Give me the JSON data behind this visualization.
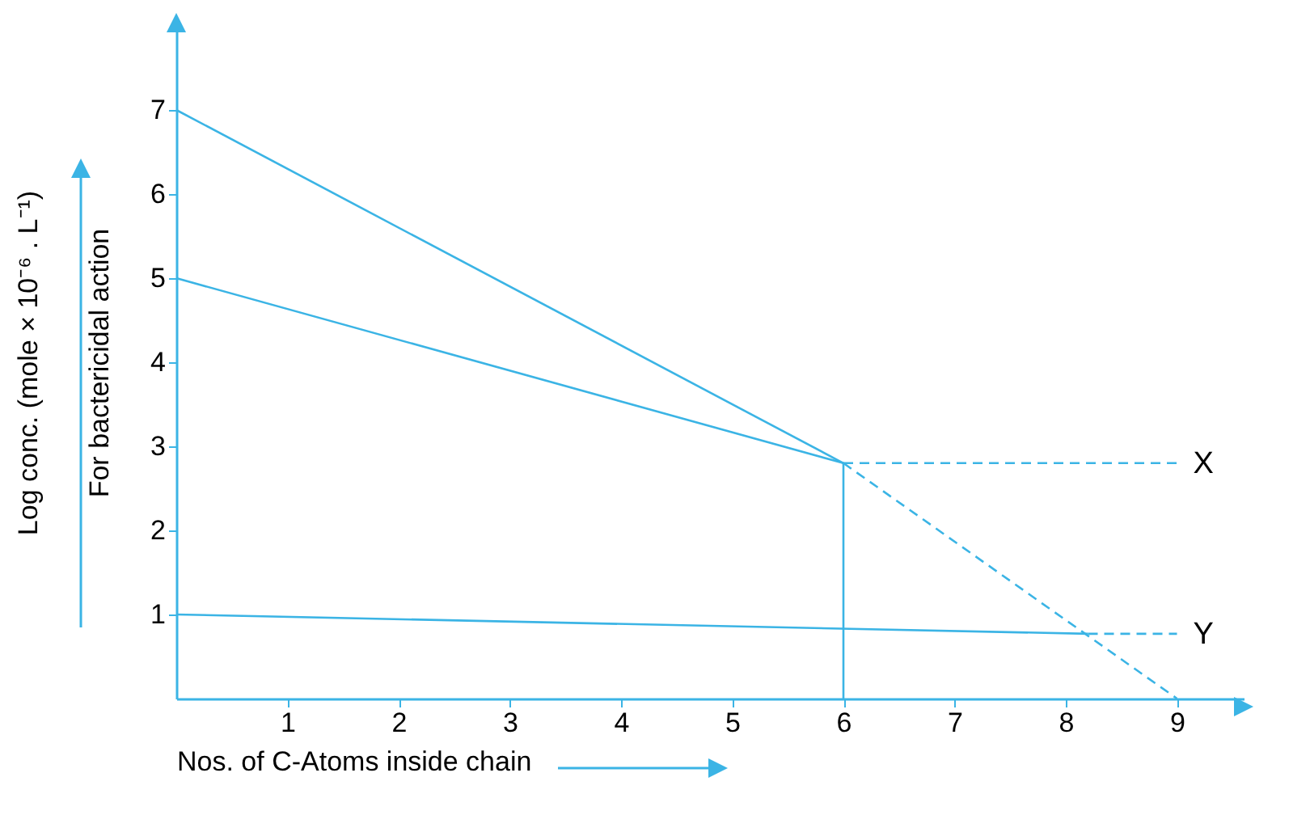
{
  "chart_data": {
    "type": "line",
    "xlabel": "Nos. of C-Atoms inside chain",
    "ylabel": "Log conc. (mole × 10⁻⁶ . L⁻¹)\nFor bactericidal action",
    "xlim": [
      0,
      9.6
    ],
    "ylim": [
      0,
      8
    ],
    "xticks": [
      1,
      2,
      3,
      4,
      5,
      6,
      7,
      8,
      9
    ],
    "yticks": [
      1,
      2,
      3,
      4,
      5,
      6,
      7
    ],
    "series": [
      {
        "color": "#3bb4e5",
        "x": [
          0,
          6
        ],
        "values": [
          7,
          2.8
        ],
        "line_style": "solid"
      },
      {
        "color": "#3bb4e5",
        "x": [
          6,
          9
        ],
        "values": [
          2.8,
          0
        ],
        "line_style": "dashed"
      },
      {
        "color": "#3bb4e5",
        "x": [
          0,
          6
        ],
        "values": [
          5,
          2.8
        ],
        "line_style": "solid"
      },
      {
        "name": "X",
        "color": "#3bb4e5",
        "x": [
          6,
          9
        ],
        "values": [
          2.8,
          2.8
        ],
        "line_style": "dashed"
      },
      {
        "color": "#3bb4e5",
        "x": [
          0,
          8.2
        ],
        "values": [
          1,
          0.77
        ],
        "line_style": "solid"
      },
      {
        "name": "Y",
        "color": "#3bb4e5",
        "x": [
          8.2,
          9
        ],
        "values": [
          0.77,
          0.77
        ],
        "line_style": "dashed"
      },
      {
        "color": "#3bb4e5",
        "x": [
          6,
          6
        ],
        "values": [
          0,
          2.8
        ],
        "line_style": "solid"
      }
    ]
  }
}
